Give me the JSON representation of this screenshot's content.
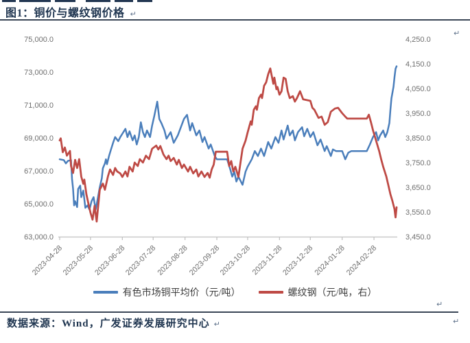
{
  "page": {
    "title": "图1：铜价与螺纹钢价格",
    "source": "数据来源：Wind，广发证券发展研究中心",
    "paragraph_mark": "↵",
    "colors": {
      "accent_navy": "#1F3550",
      "rule": "#3A4656",
      "axis_text": "#6E6E6E",
      "axis_line": "#C0C0C0"
    }
  },
  "chart_data": {
    "type": "line",
    "title": "铜价与螺纹钢价格",
    "x_type": "date",
    "x_range": [
      "2023-04-28",
      "2024-03-21"
    ],
    "x_ticks": [
      "2023-04-28",
      "2023-05-28",
      "2023-06-28",
      "2023-07-28",
      "2023-08-28",
      "2023-09-28",
      "2023-10-28",
      "2023-11-28",
      "2023-12-28",
      "2024-01-28",
      "2024-02-28"
    ],
    "grid": false,
    "legend_position": "bottom",
    "left_axis": {
      "min": 63000,
      "max": 75000,
      "step": 2000,
      "labels": [
        "75,000.0",
        "73,000.0",
        "71,000.0",
        "69,000.0",
        "67,000.0",
        "65,000.0",
        "63,000.0"
      ]
    },
    "right_axis": {
      "min": 3450,
      "max": 4250,
      "step": 100,
      "labels": [
        "4,250.0",
        "4,150.0",
        "4,050.0",
        "3,950.0",
        "3,850.0",
        "3,750.0",
        "3,650.0",
        "3,550.0",
        "3,450.0"
      ]
    },
    "series": [
      {
        "key": "copper-avg-price",
        "name": "有色市场铜平均价（元/吨）",
        "axis": "left",
        "color": "#4A7EBB",
        "stroke_width": 2.5,
        "points": [
          [
            "2023-04-28",
            67700
          ],
          [
            "2023-05-02",
            67650
          ],
          [
            "2023-05-04",
            67450
          ],
          [
            "2023-05-06",
            67600
          ],
          [
            "2023-05-09",
            67650
          ],
          [
            "2023-05-10",
            66500
          ],
          [
            "2023-05-11",
            65900
          ],
          [
            "2023-05-12",
            64900
          ],
          [
            "2023-05-13",
            65150
          ],
          [
            "2023-05-15",
            64800
          ],
          [
            "2023-05-16",
            65900
          ],
          [
            "2023-05-18",
            66100
          ],
          [
            "2023-05-19",
            65400
          ],
          [
            "2023-05-21",
            65800
          ],
          [
            "2023-05-23",
            64750
          ],
          [
            "2023-05-25",
            64900
          ],
          [
            "2023-05-27",
            64650
          ],
          [
            "2023-05-29",
            65150
          ],
          [
            "2023-05-31",
            65400
          ],
          [
            "2023-06-02",
            64650
          ],
          [
            "2023-06-04",
            65300
          ],
          [
            "2023-06-06",
            66000
          ],
          [
            "2023-06-08",
            66550
          ],
          [
            "2023-06-09",
            67150
          ],
          [
            "2023-06-11",
            67450
          ],
          [
            "2023-06-12",
            67700
          ],
          [
            "2023-06-13",
            67400
          ],
          [
            "2023-06-15",
            67900
          ],
          [
            "2023-06-17",
            68300
          ],
          [
            "2023-06-19",
            68700
          ],
          [
            "2023-06-21",
            69050
          ],
          [
            "2023-06-24",
            68800
          ],
          [
            "2023-06-26",
            69050
          ],
          [
            "2023-06-28",
            69250
          ],
          [
            "2023-07-01",
            69550
          ],
          [
            "2023-07-03",
            69050
          ],
          [
            "2023-07-05",
            69400
          ],
          [
            "2023-07-08",
            68850
          ],
          [
            "2023-07-10",
            69150
          ],
          [
            "2023-07-12",
            68600
          ],
          [
            "2023-07-14",
            69050
          ],
          [
            "2023-07-16",
            69950
          ],
          [
            "2023-07-18",
            69350
          ],
          [
            "2023-07-20",
            69050
          ],
          [
            "2023-07-22",
            69450
          ],
          [
            "2023-07-25",
            69050
          ],
          [
            "2023-07-27",
            69750
          ],
          [
            "2023-07-29",
            70300
          ],
          [
            "2023-08-01",
            71200
          ],
          [
            "2023-08-03",
            70150
          ],
          [
            "2023-08-05",
            69900
          ],
          [
            "2023-08-08",
            69450
          ],
          [
            "2023-08-10",
            68950
          ],
          [
            "2023-08-14",
            69350
          ],
          [
            "2023-08-17",
            68700
          ],
          [
            "2023-08-21",
            69150
          ],
          [
            "2023-08-24",
            69650
          ],
          [
            "2023-08-27",
            70150
          ],
          [
            "2023-08-30",
            70400
          ],
          [
            "2023-09-02",
            69450
          ],
          [
            "2023-09-04",
            69900
          ],
          [
            "2023-09-08",
            69150
          ],
          [
            "2023-09-11",
            69450
          ],
          [
            "2023-09-14",
            68750
          ],
          [
            "2023-09-16",
            69050
          ],
          [
            "2023-09-20",
            68350
          ],
          [
            "2023-09-22",
            68600
          ],
          [
            "2023-09-26",
            67900
          ],
          [
            "2023-09-28",
            67700
          ],
          [
            "2023-10-08",
            67700
          ],
          [
            "2023-10-11",
            67100
          ],
          [
            "2023-10-13",
            66650
          ],
          [
            "2023-10-15",
            66950
          ],
          [
            "2023-10-17",
            66350
          ],
          [
            "2023-10-19",
            66650
          ],
          [
            "2023-10-23",
            66150
          ],
          [
            "2023-10-26",
            66950
          ],
          [
            "2023-10-28",
            67250
          ],
          [
            "2023-11-01",
            67700
          ],
          [
            "2023-11-04",
            68200
          ],
          [
            "2023-11-07",
            67900
          ],
          [
            "2023-11-10",
            68350
          ],
          [
            "2023-11-13",
            67900
          ],
          [
            "2023-11-17",
            68750
          ],
          [
            "2023-11-20",
            68350
          ],
          [
            "2023-11-24",
            69050
          ],
          [
            "2023-11-27",
            68700
          ],
          [
            "2023-11-30",
            69450
          ],
          [
            "2023-12-02",
            68900
          ],
          [
            "2023-12-06",
            69750
          ],
          [
            "2023-12-08",
            69150
          ],
          [
            "2023-12-11",
            69450
          ],
          [
            "2023-12-13",
            68850
          ],
          [
            "2023-12-16",
            69350
          ],
          [
            "2023-12-20",
            69650
          ],
          [
            "2023-12-22",
            69100
          ],
          [
            "2023-12-25",
            69550
          ],
          [
            "2023-12-28",
            69050
          ],
          [
            "2023-12-31",
            69350
          ],
          [
            "2024-01-04",
            68550
          ],
          [
            "2024-01-07",
            68900
          ],
          [
            "2024-01-11",
            68200
          ],
          [
            "2024-01-13",
            68500
          ],
          [
            "2024-01-17",
            67900
          ],
          [
            "2024-01-19",
            68300
          ],
          [
            "2024-01-22",
            68200
          ],
          [
            "2024-01-28",
            68200
          ],
          [
            "2024-01-31",
            67700
          ],
          [
            "2024-02-03",
            68100
          ],
          [
            "2024-02-06",
            68200
          ],
          [
            "2024-02-21",
            68200
          ],
          [
            "2024-02-24",
            68600
          ],
          [
            "2024-02-27",
            69050
          ],
          [
            "2024-03-01",
            69350
          ],
          [
            "2024-03-03",
            68850
          ],
          [
            "2024-03-05",
            69150
          ],
          [
            "2024-03-08",
            69450
          ],
          [
            "2024-03-10",
            69050
          ],
          [
            "2024-03-12",
            69350
          ],
          [
            "2024-03-14",
            69900
          ],
          [
            "2024-03-15",
            70700
          ],
          [
            "2024-03-16",
            71400
          ],
          [
            "2024-03-18",
            72100
          ],
          [
            "2024-03-19",
            72700
          ],
          [
            "2024-03-20",
            73200
          ],
          [
            "2024-03-21",
            73350
          ]
        ]
      },
      {
        "key": "rebar-price",
        "name": "螺纹钢（元/吨，右）",
        "axis": "right",
        "color": "#BE4A45",
        "stroke_width": 2.8,
        "points": [
          [
            "2023-04-28",
            3840
          ],
          [
            "2023-04-29",
            3848
          ],
          [
            "2023-05-01",
            3792
          ],
          [
            "2023-05-03",
            3811
          ],
          [
            "2023-05-05",
            3778
          ],
          [
            "2023-05-08",
            3797
          ],
          [
            "2023-05-09",
            3736
          ],
          [
            "2023-05-11",
            3708
          ],
          [
            "2023-05-13",
            3761
          ],
          [
            "2023-05-15",
            3728
          ],
          [
            "2023-05-17",
            3764
          ],
          [
            "2023-05-19",
            3694
          ],
          [
            "2023-05-21",
            3664
          ],
          [
            "2023-05-22",
            3681
          ],
          [
            "2023-05-24",
            3622
          ],
          [
            "2023-05-26",
            3583
          ],
          [
            "2023-05-28",
            3547
          ],
          [
            "2023-05-30",
            3519
          ],
          [
            "2023-06-01",
            3575
          ],
          [
            "2023-06-03",
            3511
          ],
          [
            "2023-06-06",
            3640
          ],
          [
            "2023-06-09",
            3665
          ],
          [
            "2023-06-11",
            3640
          ],
          [
            "2023-06-14",
            3695
          ],
          [
            "2023-06-16",
            3722
          ],
          [
            "2023-06-19",
            3700
          ],
          [
            "2023-06-21",
            3728
          ],
          [
            "2023-06-23",
            3714
          ],
          [
            "2023-06-26",
            3706
          ],
          [
            "2023-06-28",
            3692
          ],
          [
            "2023-07-01",
            3714
          ],
          [
            "2023-07-03",
            3694
          ],
          [
            "2023-07-05",
            3733
          ],
          [
            "2023-07-08",
            3714
          ],
          [
            "2023-07-10",
            3750
          ],
          [
            "2023-07-13",
            3736
          ],
          [
            "2023-07-15",
            3764
          ],
          [
            "2023-07-18",
            3750
          ],
          [
            "2023-07-21",
            3778
          ],
          [
            "2023-07-24",
            3764
          ],
          [
            "2023-07-27",
            3806
          ],
          [
            "2023-07-31",
            3819
          ],
          [
            "2023-08-02",
            3803
          ],
          [
            "2023-08-04",
            3817
          ],
          [
            "2023-08-07",
            3783
          ],
          [
            "2023-08-10",
            3764
          ],
          [
            "2023-08-12",
            3778
          ],
          [
            "2023-08-14",
            3756
          ],
          [
            "2023-08-17",
            3769
          ],
          [
            "2023-08-20",
            3742
          ],
          [
            "2023-08-22",
            3761
          ],
          [
            "2023-08-25",
            3728
          ],
          [
            "2023-08-27",
            3742
          ],
          [
            "2023-08-31",
            3714
          ],
          [
            "2023-09-02",
            3733
          ],
          [
            "2023-09-05",
            3706
          ],
          [
            "2023-09-08",
            3722
          ],
          [
            "2023-09-10",
            3694
          ],
          [
            "2023-09-13",
            3714
          ],
          [
            "2023-09-16",
            3692
          ],
          [
            "2023-09-19",
            3708
          ],
          [
            "2023-09-21",
            3689
          ],
          [
            "2023-09-23",
            3722
          ],
          [
            "2023-09-25",
            3742
          ],
          [
            "2023-09-27",
            3794
          ],
          [
            "2023-10-08",
            3794
          ],
          [
            "2023-10-10",
            3736
          ],
          [
            "2023-10-12",
            3756
          ],
          [
            "2023-10-14",
            3714
          ],
          [
            "2023-10-16",
            3733
          ],
          [
            "2023-10-19",
            3692
          ],
          [
            "2023-10-21",
            3750
          ],
          [
            "2023-10-23",
            3806
          ],
          [
            "2023-10-26",
            3839
          ],
          [
            "2023-10-28",
            3872
          ],
          [
            "2023-10-31",
            3917
          ],
          [
            "2023-11-01",
            3903
          ],
          [
            "2023-11-03",
            3964
          ],
          [
            "2023-11-05",
            3978
          ],
          [
            "2023-11-06",
            3964
          ],
          [
            "2023-11-08",
            4011
          ],
          [
            "2023-11-10",
            4025
          ],
          [
            "2023-11-11",
            4011
          ],
          [
            "2023-11-13",
            4061
          ],
          [
            "2023-11-15",
            4075
          ],
          [
            "2023-11-17",
            4108
          ],
          [
            "2023-11-19",
            4131
          ],
          [
            "2023-11-22",
            4069
          ],
          [
            "2023-11-23",
            4094
          ],
          [
            "2023-11-25",
            4047
          ],
          [
            "2023-11-26",
            4056
          ],
          [
            "2023-11-28",
            4025
          ],
          [
            "2023-11-30",
            4039
          ],
          [
            "2023-12-02",
            4094
          ],
          [
            "2023-12-04",
            4089
          ],
          [
            "2023-12-06",
            4039
          ],
          [
            "2023-12-08",
            4011
          ],
          [
            "2023-12-11",
            4019
          ],
          [
            "2023-12-13",
            3997
          ],
          [
            "2023-12-15",
            4011
          ],
          [
            "2023-12-18",
            4039
          ],
          [
            "2023-12-21",
            4006
          ],
          [
            "2023-12-28",
            4000
          ],
          [
            "2023-12-30",
            3972
          ],
          [
            "2024-01-01",
            3964
          ],
          [
            "2024-01-05",
            3931
          ],
          [
            "2024-01-08",
            3936
          ],
          [
            "2024-01-11",
            3903
          ],
          [
            "2024-01-14",
            3914
          ],
          [
            "2024-01-17",
            3956
          ],
          [
            "2024-01-21",
            3969
          ],
          [
            "2024-01-24",
            3972
          ],
          [
            "2024-01-28",
            3950
          ],
          [
            "2024-01-31",
            3936
          ],
          [
            "2024-02-02",
            3928
          ],
          [
            "2024-02-21",
            3928
          ],
          [
            "2024-02-23",
            3944
          ],
          [
            "2024-02-25",
            3914
          ],
          [
            "2024-02-27",
            3881
          ],
          [
            "2024-02-29",
            3853
          ],
          [
            "2024-03-02",
            3825
          ],
          [
            "2024-03-04",
            3797
          ],
          [
            "2024-03-06",
            3764
          ],
          [
            "2024-03-08",
            3733
          ],
          [
            "2024-03-11",
            3694
          ],
          [
            "2024-03-13",
            3658
          ],
          [
            "2024-03-15",
            3622
          ],
          [
            "2024-03-17",
            3594
          ],
          [
            "2024-03-19",
            3561
          ],
          [
            "2024-03-20",
            3528
          ],
          [
            "2024-03-21",
            3569
          ]
        ]
      }
    ]
  }
}
